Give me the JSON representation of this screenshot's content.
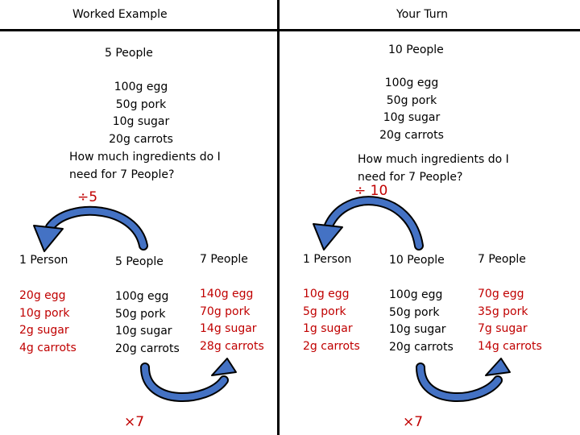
{
  "colors": {
    "red": "#c00000",
    "arrow_blue": "#4472c4"
  },
  "left": {
    "header": "Worked Example",
    "people": "5 People",
    "ingredients": [
      "100g egg",
      "50g pork",
      "10g sugar",
      "20g carrots"
    ],
    "question": [
      "How much ingredients do I",
      "need for 7 People?"
    ],
    "divide_label": "÷5",
    "multiply_label": "×7",
    "col1": {
      "head": "1 Person",
      "items": [
        "20g egg",
        "10g pork",
        "2g sugar",
        "4g carrots"
      ]
    },
    "col2": {
      "head": "5 People",
      "items": [
        "100g egg",
        "50g pork",
        "10g sugar",
        "20g carrots"
      ]
    },
    "col3": {
      "head": "7 People",
      "items": [
        "140g egg",
        "70g pork",
        "14g sugar",
        "28g carrots"
      ]
    }
  },
  "right": {
    "header": "Your Turn",
    "people": "10 People",
    "ingredients": [
      "100g egg",
      "50g pork",
      "10g sugar",
      "20g carrots"
    ],
    "question": [
      "How much ingredients do I",
      "need for 7 People?"
    ],
    "divide_label": "÷ 10",
    "multiply_label": "×7",
    "col1": {
      "head": "1 Person",
      "items": [
        "10g egg",
        "5g pork",
        "1g sugar",
        "2g carrots"
      ]
    },
    "col2": {
      "head": "10 People",
      "items": [
        "100g egg",
        "50g pork",
        "10g sugar",
        "20g carrots"
      ]
    },
    "col3": {
      "head": "7 People",
      "items": [
        "70g egg",
        "35g pork",
        "7g sugar",
        "14g carrots"
      ]
    }
  }
}
